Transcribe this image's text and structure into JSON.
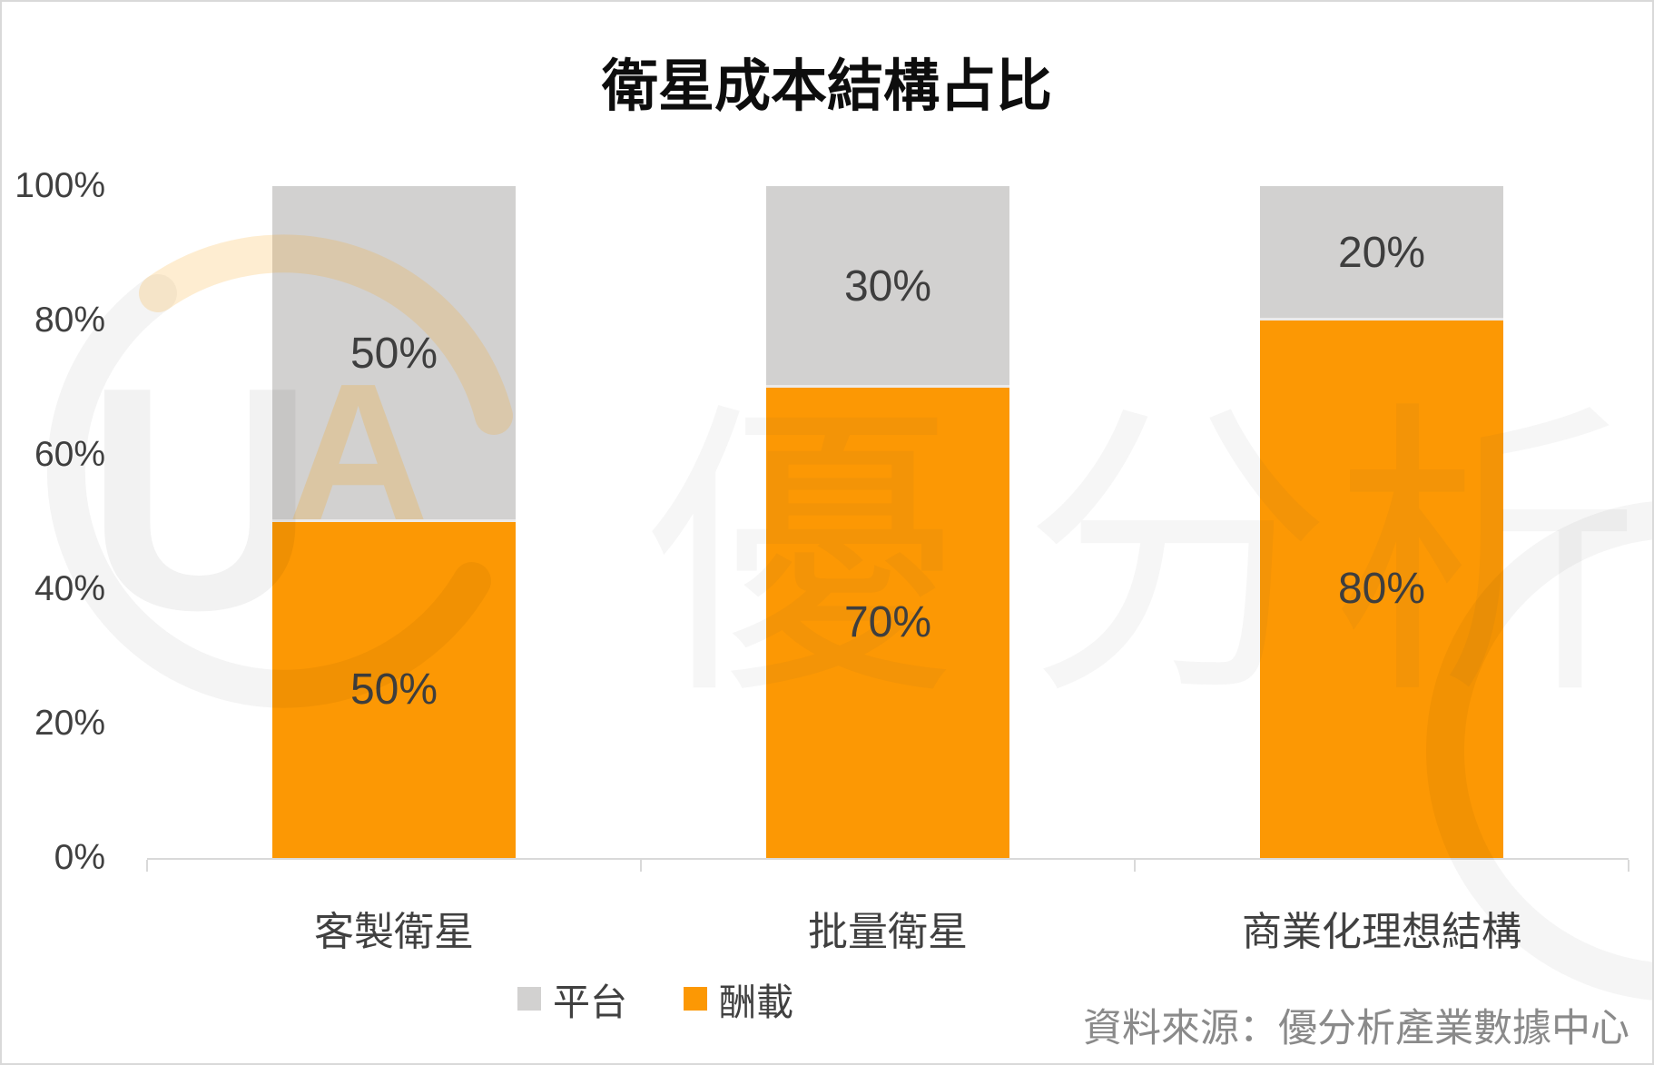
{
  "title": "衛星成本結構占比",
  "source_note": "資料來源：優分析產業數據中心",
  "watermark": {
    "logo_u": "U",
    "logo_a": "A",
    "brand_chars": [
      "優",
      "分",
      "析"
    ]
  },
  "colors": {
    "orange": "#FC9804",
    "gray": "#D2D1D0",
    "value_label": "#3E3E3E",
    "axis_text": "#404040",
    "axis_line": "#D9D9D9",
    "source_text": "#8A8A8A"
  },
  "chart_data": {
    "type": "bar",
    "stacked": true,
    "title": "衛星成本結構占比",
    "categories": [
      "客製衛星",
      "批量衛星",
      "商業化理想結構"
    ],
    "series": [
      {
        "name": "酬載",
        "color_key": "orange",
        "values": [
          50,
          70,
          80
        ]
      },
      {
        "name": "平台",
        "color_key": "gray",
        "values": [
          50,
          30,
          20
        ]
      }
    ],
    "value_suffix": "%",
    "y_ticks": [
      "0%",
      "20%",
      "40%",
      "60%",
      "80%",
      "100%"
    ],
    "ylim": [
      0,
      100
    ],
    "grid": false,
    "legend_position": "bottom",
    "legend_order": [
      "平台",
      "酬載"
    ]
  }
}
